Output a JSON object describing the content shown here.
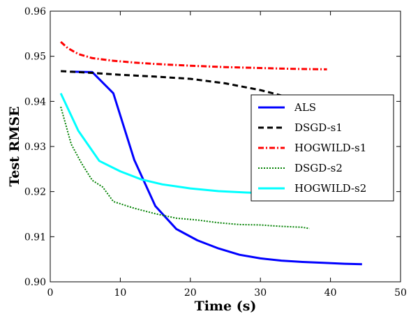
{
  "chart_data": {
    "type": "line",
    "title": "",
    "xlabel": "Time (s)",
    "ylabel": "Test RMSE",
    "xlim": [
      0,
      50
    ],
    "ylim": [
      0.9,
      0.96
    ],
    "x_ticks": [
      0,
      10,
      20,
      30,
      40,
      50
    ],
    "x_tick_labels": [
      "0",
      "10",
      "20",
      "30",
      "40",
      "50"
    ],
    "y_ticks": [
      0.9,
      0.91,
      0.92,
      0.93,
      0.94,
      0.95,
      0.96
    ],
    "y_tick_labels": [
      "0.90",
      "0.91",
      "0.92",
      "0.93",
      "0.94",
      "0.95",
      "0.96"
    ],
    "grid": false,
    "legend_position": "center-right",
    "series": [
      {
        "name": "ALS",
        "color": "#0000ff",
        "dash": "solid",
        "x": [
          3,
          6,
          9,
          12,
          15,
          18,
          21,
          24,
          27,
          30,
          33,
          36,
          39,
          42,
          44.5
        ],
        "y": [
          0.9466,
          0.9465,
          0.9418,
          0.927,
          0.9168,
          0.9117,
          0.9092,
          0.9074,
          0.906,
          0.9052,
          0.9047,
          0.9044,
          0.9042,
          0.904,
          0.9039
        ]
      },
      {
        "name": "DSGD-s1",
        "color": "#000000",
        "dash": "dashed",
        "x": [
          1.5,
          5,
          10,
          15,
          20,
          25,
          30,
          33
        ],
        "y": [
          0.9467,
          0.9464,
          0.9459,
          0.9455,
          0.945,
          0.944,
          0.9425,
          0.9413
        ]
      },
      {
        "name": "HOGWILD-s1",
        "color": "#ff0000",
        "dash": "dashdot",
        "x": [
          1.5,
          2.5,
          4,
          6,
          9,
          12,
          15,
          20,
          25,
          30,
          35,
          39.5
        ],
        "y": [
          0.9532,
          0.9518,
          0.9505,
          0.9496,
          0.949,
          0.9486,
          0.9483,
          0.9479,
          0.9476,
          0.9474,
          0.9472,
          0.9471
        ]
      },
      {
        "name": "DSGD-s2",
        "color": "#008000",
        "dash": "dotted",
        "x": [
          1.5,
          3,
          4.5,
          6,
          7.5,
          9,
          12,
          15,
          18,
          21,
          24,
          27,
          30,
          33,
          36,
          37
        ],
        "y": [
          0.9388,
          0.9305,
          0.9262,
          0.9225,
          0.921,
          0.9178,
          0.9163,
          0.9151,
          0.9141,
          0.9137,
          0.9131,
          0.9127,
          0.9126,
          0.9123,
          0.9121,
          0.9118
        ]
      },
      {
        "name": "HOGWILD-s2",
        "color": "#00ffff",
        "dash": "solid",
        "x": [
          1.5,
          4,
          7,
          10,
          13,
          16,
          20,
          24,
          28,
          30
        ],
        "y": [
          0.9418,
          0.9335,
          0.9268,
          0.9245,
          0.9227,
          0.9216,
          0.9207,
          0.9201,
          0.9198,
          0.9197
        ]
      }
    ]
  }
}
